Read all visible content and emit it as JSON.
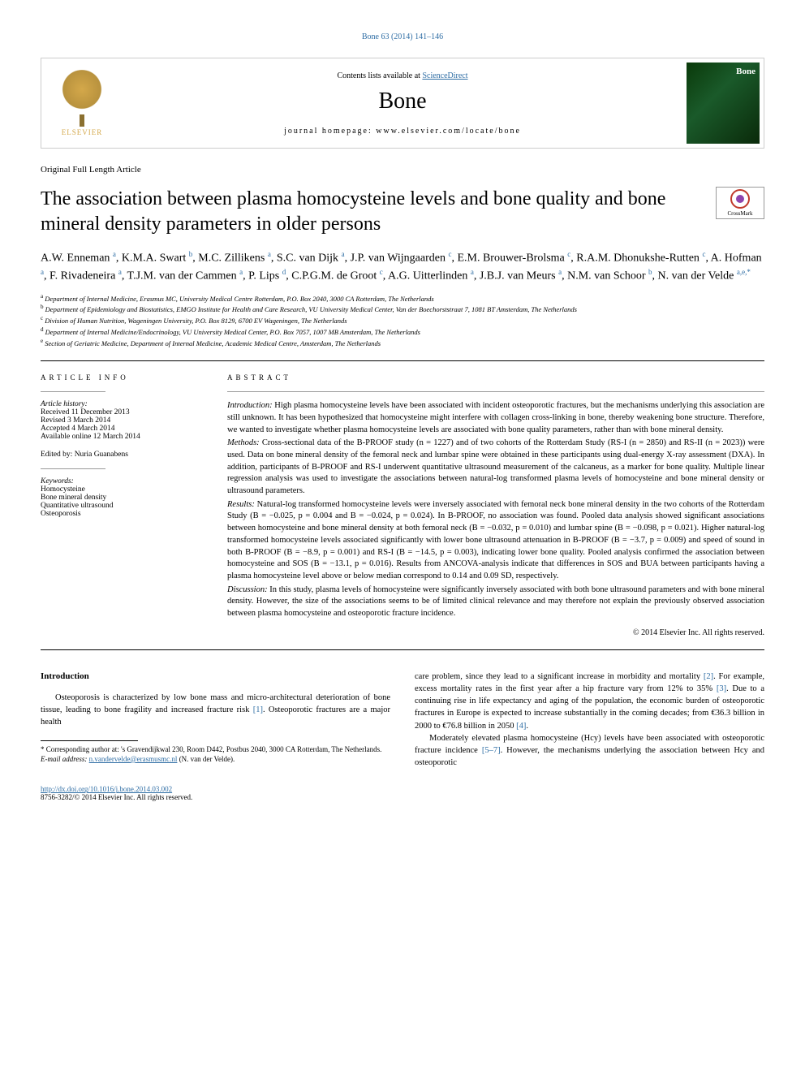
{
  "doi_header": "Bone 63 (2014) 141–146",
  "header": {
    "elsevier_label": "ELSEVIER",
    "contents_prefix": "Contents lists available at ",
    "contents_link": "ScienceDirect",
    "journal_name": "Bone",
    "homepage_prefix": "journal homepage: ",
    "homepage_url": "www.elsevier.com/locate/bone",
    "cover_title": "Bone"
  },
  "article_type": "Original Full Length Article",
  "title": "The association between plasma homocysteine levels and bone quality and bone mineral density parameters in older persons",
  "crossmark_label": "CrossMark",
  "authors_html": "A.W. Enneman <sup>a</sup>, K.M.A. Swart <sup>b</sup>, M.C. Zillikens <sup>a</sup>, S.C. van Dijk <sup>a</sup>, J.P. van Wijngaarden <sup>c</sup>, E.M. Brouwer-Brolsma <sup>c</sup>, R.A.M. Dhonukshe-Rutten <sup>c</sup>, A. Hofman <sup>a</sup>, F. Rivadeneira <sup>a</sup>, T.J.M. van der Cammen <sup>a</sup>, P. Lips <sup>d</sup>, C.P.G.M. de Groot <sup>c</sup>, A.G. Uitterlinden <sup>a</sup>, J.B.J. van Meurs <sup>a</sup>, N.M. van Schoor <sup>b</sup>, N. van der Velde <sup>a,e,*</sup>",
  "affiliations": [
    {
      "sup": "a",
      "text": "Department of Internal Medicine, Erasmus MC, University Medical Centre Rotterdam, P.O. Box 2040, 3000 CA Rotterdam, The Netherlands"
    },
    {
      "sup": "b",
      "text": "Department of Epidemiology and Biostatistics, EMGO Institute for Health and Care Research, VU University Medical Center, Van der Boechorststraat 7, 1081 BT Amsterdam, The Netherlands"
    },
    {
      "sup": "c",
      "text": "Division of Human Nutrition, Wageningen University, P.O. Box 8129, 6700 EV Wageningen, The Netherlands"
    },
    {
      "sup": "d",
      "text": "Department of Internal Medicine/Endocrinology, VU University Medical Center, P.O. Box 7057, 1007 MB Amsterdam, The Netherlands"
    },
    {
      "sup": "e",
      "text": "Section of Geriatric Medicine, Department of Internal Medicine, Academic Medical Centre, Amsterdam, The Netherlands"
    }
  ],
  "article_info": {
    "heading": "ARTICLE INFO",
    "history_label": "Article history:",
    "history": [
      "Received 11 December 2013",
      "Revised 3 March 2014",
      "Accepted 4 March 2014",
      "Available online 12 March 2014"
    ],
    "edited_by": "Edited by: Nuria Guanabens",
    "keywords_label": "Keywords:",
    "keywords": [
      "Homocysteine",
      "Bone mineral density",
      "Quantitative ultrasound",
      "Osteoporosis"
    ]
  },
  "abstract": {
    "heading": "ABSTRACT",
    "sections": [
      {
        "label": "Introduction:",
        "text": "High plasma homocysteine levels have been associated with incident osteoporotic fractures, but the mechanisms underlying this association are still unknown. It has been hypothesized that homocysteine might interfere with collagen cross-linking in bone, thereby weakening bone structure. Therefore, we wanted to investigate whether plasma homocysteine levels are associated with bone quality parameters, rather than with bone mineral density."
      },
      {
        "label": "Methods:",
        "text": "Cross-sectional data of the B-PROOF study (n = 1227) and of two cohorts of the Rotterdam Study (RS-I (n = 2850) and RS-II (n = 2023)) were used. Data on bone mineral density of the femoral neck and lumbar spine were obtained in these participants using dual-energy X-ray assessment (DXA). In addition, participants of B-PROOF and RS-I underwent quantitative ultrasound measurement of the calcaneus, as a marker for bone quality. Multiple linear regression analysis was used to investigate the associations between natural-log transformed plasma levels of homocysteine and bone mineral density or ultrasound parameters."
      },
      {
        "label": "Results:",
        "text": "Natural-log transformed homocysteine levels were inversely associated with femoral neck bone mineral density in the two cohorts of the Rotterdam Study (B = −0.025, p = 0.004 and B = −0.024, p = 0.024). In B-PROOF, no association was found. Pooled data analysis showed significant associations between homocysteine and bone mineral density at both femoral neck (B = −0.032, p = 0.010) and lumbar spine (B = −0.098, p = 0.021). Higher natural-log transformed homocysteine levels associated significantly with lower bone ultrasound attenuation in B-PROOF (B = −3.7, p = 0.009) and speed of sound in both B-PROOF (B = −8.9, p = 0.001) and RS-I (B = −14.5, p = 0.003), indicating lower bone quality. Pooled analysis confirmed the association between homocysteine and SOS (B = −13.1, p = 0.016). Results from ANCOVA-analysis indicate that differences in SOS and BUA between participants having a plasma homocysteine level above or below median correspond to 0.14 and 0.09 SD, respectively."
      },
      {
        "label": "Discussion:",
        "text": "In this study, plasma levels of homocysteine were significantly inversely associated with both bone ultrasound parameters and with bone mineral density. However, the size of the associations seems to be of limited clinical relevance and may therefore not explain the previously observed association between plasma homocysteine and osteoporotic fracture incidence."
      }
    ],
    "copyright": "© 2014 Elsevier Inc. All rights reserved."
  },
  "body": {
    "intro_heading": "Introduction",
    "left_para": "Osteoporosis is characterized by low bone mass and micro-architectural deterioration of bone tissue, leading to bone fragility and increased fracture risk [1]. Osteoporotic fractures are a major health",
    "right_para1": "care problem, since they lead to a significant increase in morbidity and mortality [2]. For example, excess mortality rates in the first year after a hip fracture vary from 12% to 35% [3]. Due to a continuing rise in life expectancy and aging of the population, the economic burden of osteoporotic fractures in Europe is expected to increase substantially in the coming decades; from €36.3 billion in 2000 to €76.8 billion in 2050 [4].",
    "right_para2": "Moderately elevated plasma homocysteine (Hcy) levels have been associated with osteoporotic fracture incidence [5–7]. However, the mechanisms underlying the association between Hcy and osteoporotic"
  },
  "footnote": {
    "corresponding": "* Corresponding author at: 's Gravendijkwal 230, Room D442, Postbus 2040, 3000 CA Rotterdam, The Netherlands.",
    "email_label": "E-mail address: ",
    "email": "n.vandervelde@erasmusmc.nl",
    "email_suffix": " (N. van der Velde)."
  },
  "footer": {
    "doi": "http://dx.doi.org/10.1016/j.bone.2014.03.002",
    "issn": "8756-3282/© 2014 Elsevier Inc. All rights reserved."
  },
  "colors": {
    "link": "#2e6da4",
    "text": "#000000",
    "elsevier": "#d4a84a"
  }
}
